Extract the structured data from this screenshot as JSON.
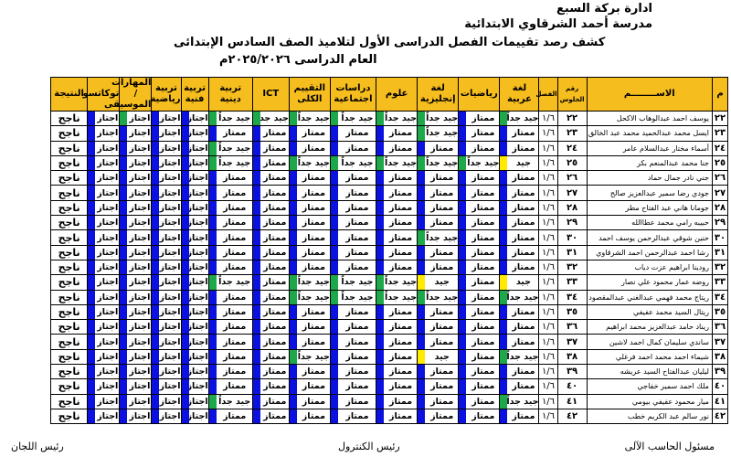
{
  "header": {
    "administration": "ادارة بركة السبع",
    "school": "مدرسة أحمد الشرقاوي الابتدائية",
    "title": "كشف رصد تقييمات الفصل الدراسى الأول لتلاميذ الصف السادس الإبتدائى",
    "year": "العام الدراسى ٢٠٢٥/٢٠٢٦م"
  },
  "columns": [
    "م",
    "الاســــــــم",
    "رقم الجلوس",
    "الفصل",
    "لغة عربية",
    "رياضيات",
    "لغة إنجليزية",
    "علوم",
    "دراسات اجتماعية",
    "التقييم الكلى",
    "ICT",
    "تربية دينية",
    "تربية فنية",
    "تربية رياضية",
    "المهارات / الموسيقى",
    "توكاتسو",
    "النتيجة"
  ],
  "grade_colors": {
    "ممتاز": "#0b12e0",
    "جيد جداً": "#1ea84c",
    "جيد": "#ffea00",
    "اجتاز": "#0b12e0"
  },
  "class": "١/٦",
  "result_label": "ناجح",
  "pass_label": "اجتاز",
  "rows": [
    {
      "m": "٢٢",
      "name": "يوسف احمد عبدالوهاب الاكحل",
      "seat": "٢٢",
      "grades": [
        "جيد جداً",
        "ممتاز",
        "جيد جداً",
        "جيد جداً",
        "جيد جداً",
        "جيد جداً",
        "جيد جداً",
        "جيد جداً"
      ],
      "music_mark": "#1ea84c"
    },
    {
      "m": "٢٣",
      "name": "ايسل محمد عبدالحميد محمد عبد الخالق",
      "seat": "٢٣",
      "grades": [
        "ممتاز",
        "ممتاز",
        "جيد جداً",
        "ممتاز",
        "ممتاز",
        "ممتاز",
        "ممتاز",
        "ممتاز"
      ]
    },
    {
      "m": "٢٤",
      "name": "أسماء مختار عبدالسلام عامر",
      "seat": "٢٤",
      "grades": [
        "ممتاز",
        "ممتاز",
        "ممتاز",
        "ممتاز",
        "ممتاز",
        "ممتاز",
        "ممتاز",
        "جيد جداً"
      ]
    },
    {
      "m": "٢٥",
      "name": "جنا محمد عبدالمنعم بكر",
      "seat": "٢٥",
      "grades": [
        "جيد",
        "جيد جداً",
        "جيد جداً",
        "جيد جداً",
        "جيد جداً",
        "جيد جداً",
        "ممتاز",
        "جيد جداً"
      ]
    },
    {
      "m": "٢٦",
      "name": "جني نادر جمال حماد",
      "seat": "٢٦",
      "grades": [
        "ممتاز",
        "ممتاز",
        "ممتاز",
        "ممتاز",
        "ممتاز",
        "ممتاز",
        "ممتاز",
        "ممتاز"
      ]
    },
    {
      "m": "٢٧",
      "name": "جودي رضا سمير عبدالعزيز صالح",
      "seat": "٢٧",
      "grades": [
        "ممتاز",
        "ممتاز",
        "ممتاز",
        "ممتاز",
        "ممتاز",
        "ممتاز",
        "ممتاز",
        "ممتاز"
      ]
    },
    {
      "m": "٢٨",
      "name": "جومانا هاني عبد الفتاح مطر",
      "seat": "٢٨",
      "grades": [
        "ممتاز",
        "ممتاز",
        "ممتاز",
        "ممتاز",
        "ممتاز",
        "ممتاز",
        "ممتاز",
        "ممتاز"
      ]
    },
    {
      "m": "٢٩",
      "name": "حبيبه رامي محمد عطاالله",
      "seat": "٢٩",
      "grades": [
        "ممتاز",
        "ممتاز",
        "ممتاز",
        "ممتاز",
        "ممتاز",
        "ممتاز",
        "ممتاز",
        "ممتاز"
      ]
    },
    {
      "m": "٣٠",
      "name": "حنين شوقي عبدالرحمن يوسف احمد",
      "seat": "٣٠",
      "grades": [
        "ممتاز",
        "ممتاز",
        "جيد جداً",
        "ممتاز",
        "ممتاز",
        "ممتاز",
        "ممتاز",
        "ممتاز"
      ]
    },
    {
      "m": "٣١",
      "name": "رشا احمد عبدالرحمن احمد الشرقاوي",
      "seat": "٣١",
      "grades": [
        "ممتاز",
        "ممتاز",
        "ممتاز",
        "ممتاز",
        "ممتاز",
        "ممتاز",
        "ممتاز",
        "ممتاز"
      ]
    },
    {
      "m": "٣٢",
      "name": "رودينا ابراهيم عزت دياب",
      "seat": "٣٢",
      "grades": [
        "ممتاز",
        "ممتاز",
        "ممتاز",
        "ممتاز",
        "ممتاز",
        "ممتاز",
        "ممتاز",
        "ممتاز"
      ]
    },
    {
      "m": "٣٣",
      "name": "روضه عمار محمود علي نصار",
      "seat": "٣٣",
      "grades": [
        "جيد",
        "ممتاز",
        "جيد",
        "جيد جداً",
        "جيد جداً",
        "جيد جداً",
        "ممتاز",
        "جيد جداً"
      ]
    },
    {
      "m": "٣٤",
      "name": "ريتاج محمد فهمي عبدالغني عبدالمقصود",
      "seat": "٣٤",
      "grades": [
        "جيد جداً",
        "ممتاز",
        "جيد جداً",
        "جيد جداً",
        "جيد جداً",
        "جيد جداً",
        "ممتاز",
        "ممتاز"
      ]
    },
    {
      "m": "٣٥",
      "name": "ريتال السيد محمد عفيفي",
      "seat": "٣٥",
      "grades": [
        "ممتاز",
        "ممتاز",
        "ممتاز",
        "ممتاز",
        "ممتاز",
        "ممتاز",
        "ممتاز",
        "ممتاز"
      ]
    },
    {
      "m": "٣٦",
      "name": "ريناد حامد عبدالعزيز محمد ابراهيم",
      "seat": "٣٦",
      "grades": [
        "ممتاز",
        "ممتاز",
        "ممتاز",
        "ممتاز",
        "ممتاز",
        "ممتاز",
        "ممتاز",
        "ممتاز"
      ]
    },
    {
      "m": "٣٧",
      "name": "ساندي سليمان كمال احمد لاشين",
      "seat": "٣٧",
      "grades": [
        "ممتاز",
        "ممتاز",
        "ممتاز",
        "ممتاز",
        "ممتاز",
        "ممتاز",
        "ممتاز",
        "ممتاز"
      ]
    },
    {
      "m": "٣٨",
      "name": "شيماء احمد محمد احمد فرغلي",
      "seat": "٣٨",
      "grades": [
        "جيد جداً",
        "ممتاز",
        "جيد",
        "ممتاز",
        "ممتاز",
        "جيد جداً",
        "ممتاز",
        "ممتاز"
      ]
    },
    {
      "m": "٣٩",
      "name": "ليليان عبدالفتاح السيد عريشه",
      "seat": "٣٩",
      "grades": [
        "ممتاز",
        "ممتاز",
        "ممتاز",
        "ممتاز",
        "ممتاز",
        "ممتاز",
        "ممتاز",
        "ممتاز"
      ]
    },
    {
      "m": "٤٠",
      "name": "ملك احمد سمير خفاجي",
      "seat": "٤٠",
      "grades": [
        "ممتاز",
        "ممتاز",
        "ممتاز",
        "ممتاز",
        "ممتاز",
        "ممتاز",
        "ممتاز",
        "ممتاز"
      ]
    },
    {
      "m": "٤١",
      "name": "ميار محمود عفيفي بيومي",
      "seat": "٤١",
      "grades": [
        "جيد جداً",
        "ممتاز",
        "ممتاز",
        "ممتاز",
        "ممتاز",
        "ممتاز",
        "ممتاز",
        "جيد جداً"
      ]
    },
    {
      "m": "٤٢",
      "name": "نور سالم عبد الكريم خطب",
      "seat": "٤٢",
      "grades": [
        "ممتاز",
        "ممتاز",
        "ممتاز",
        "ممتاز",
        "ممتاز",
        "ممتاز",
        "ممتاز",
        "ممتاز"
      ]
    }
  ],
  "footer": {
    "computer_officer": "مسئول الحاسب الآلى",
    "control_head": "رئيس الكنترول",
    "committees_head": "رئيس اللجان"
  }
}
